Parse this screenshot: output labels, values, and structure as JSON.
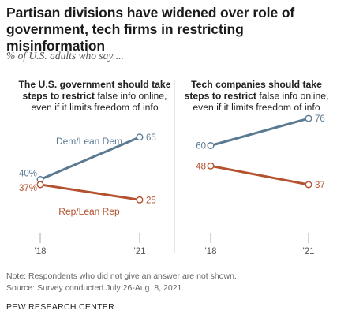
{
  "title": "Partisan divisions have widened over role of government, tech firms in restricting misinformation",
  "subtitle": "% of U.S. adults who say ...",
  "notes": [
    "Note: Respondents who did not give an answer are not shown.",
    "Source: Survey conducted July 26-Aug. 8, 2021."
  ],
  "source_org": "PEW RESEARCH CENTER",
  "colors": {
    "dem": "#5a7a92",
    "rep": "#b4512e",
    "axis": "#aaaaaa"
  },
  "chart_data": [
    {
      "type": "line",
      "title_lines": [
        {
          "bold": "The U.S. government should take",
          "normal": ""
        },
        {
          "bold": "steps to restrict",
          "normal": " false info online,"
        },
        {
          "bold": "",
          "normal": "even if it limits freedom of info"
        }
      ],
      "x": [
        "'18",
        "'21"
      ],
      "ylim": [
        0,
        100
      ],
      "series": [
        {
          "name": "Dem/Lean Dem",
          "key": "dem",
          "values": [
            40,
            65
          ],
          "labels": [
            "40%",
            "65"
          ]
        },
        {
          "name": "Rep/Lean Rep",
          "key": "rep",
          "values": [
            37,
            28
          ],
          "labels": [
            "37%",
            "28"
          ]
        }
      ]
    },
    {
      "type": "line",
      "title_lines": [
        {
          "bold": "Tech companies should take",
          "normal": ""
        },
        {
          "bold": "steps to restrict",
          "normal": " false info online,"
        },
        {
          "bold": "",
          "normal": "even if it limits freedom of info"
        }
      ],
      "x": [
        "'18",
        "'21"
      ],
      "ylim": [
        0,
        100
      ],
      "series": [
        {
          "key": "dem",
          "values": [
            60,
            76
          ],
          "labels": [
            "60",
            "76"
          ]
        },
        {
          "key": "rep",
          "values": [
            48,
            37
          ],
          "labels": [
            "48",
            "37"
          ]
        }
      ]
    }
  ]
}
